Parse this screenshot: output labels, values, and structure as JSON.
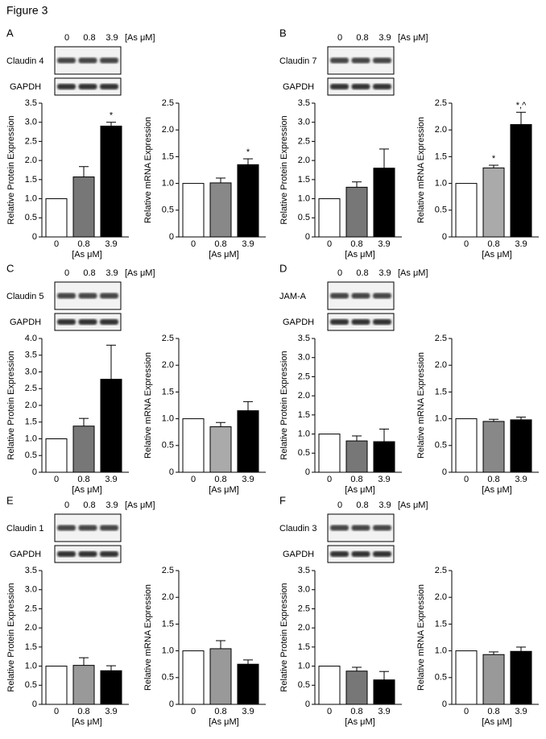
{
  "figure_title": "Figure 3",
  "panels": [
    {
      "label": "A",
      "doses": [
        "0",
        "0.8",
        "3.9"
      ],
      "unit": "[As μM]",
      "target": "Claudin 4",
      "control": "GAPDH"
    },
    {
      "label": "B",
      "doses": [
        "0",
        "0.8",
        "3.9"
      ],
      "unit": "[As μM]",
      "target": "Claudin 7",
      "control": "GAPDH"
    },
    {
      "label": "C",
      "doses": [
        "0",
        "0.8",
        "3.9"
      ],
      "unit": "[As μM]",
      "target": "Claudin 5",
      "control": "GAPDH"
    },
    {
      "label": "D",
      "doses": [
        "0",
        "0.8",
        "3.9"
      ],
      "unit": "[As μM]",
      "target": "JAM-A",
      "control": "GAPDH"
    },
    {
      "label": "E",
      "doses": [
        "0",
        "0.8",
        "3.9"
      ],
      "unit": "[As μM]",
      "target": "Claudin 1",
      "control": "GAPDH"
    },
    {
      "label": "F",
      "doses": [
        "0",
        "0.8",
        "3.9"
      ],
      "unit": "[As μM]",
      "target": "Claudin 3",
      "control": "GAPDH"
    }
  ],
  "chart_data": [
    {
      "type": "bar",
      "ylabel": "Relative Protein Expression",
      "xlabel": "[As μM]",
      "categories": [
        "0",
        "0.8",
        "3.9"
      ],
      "values": [
        1.0,
        1.57,
        2.9
      ],
      "errors": [
        0,
        0.27,
        0.1
      ],
      "annotations": [
        null,
        null,
        "*"
      ],
      "colors": [
        "#ffffff",
        "#777777",
        "#000000"
      ],
      "ylim": [
        0,
        3.5
      ],
      "yticks": [
        0,
        0.5,
        {
          "value": 1,
          "label": "1.0"
        },
        1.5,
        {
          "value": 2,
          "label": "2.0"
        },
        2.5,
        {
          "value": 3,
          "label": "3.0"
        },
        3.5
      ]
    },
    {
      "type": "bar",
      "ylabel": "Relative mRNA Expression",
      "xlabel": "[As μM]",
      "categories": [
        "0",
        "0.8",
        "3.9"
      ],
      "values": [
        1.0,
        1.01,
        1.35
      ],
      "errors": [
        0,
        0.09,
        0.11
      ],
      "annotations": [
        null,
        null,
        "*"
      ],
      "colors": [
        "#ffffff",
        "#888888",
        "#000000"
      ],
      "ylim": [
        0,
        2.5
      ],
      "yticks": [
        0,
        0.5,
        {
          "value": 1,
          "label": "1.0"
        },
        1.5,
        {
          "value": 2,
          "label": "2.0"
        },
        2.5
      ]
    },
    {
      "type": "bar",
      "ylabel": "Relative Protein Expression",
      "xlabel": "[As μM]",
      "categories": [
        "0",
        "0.8",
        "3.9"
      ],
      "values": [
        1.0,
        1.3,
        1.8
      ],
      "errors": [
        0,
        0.14,
        0.5
      ],
      "colors": [
        "#ffffff",
        "#777777",
        "#000000"
      ],
      "ylim": [
        0,
        3.5
      ],
      "yticks": [
        0,
        0.5,
        {
          "value": 1,
          "label": "1.0"
        },
        1.5,
        {
          "value": 2,
          "label": "2.0"
        },
        2.5,
        {
          "value": 3,
          "label": "3.0"
        },
        3.5
      ]
    },
    {
      "type": "bar",
      "ylabel": "Relative mRNA Expression",
      "xlabel": "[As μM]",
      "categories": [
        "0",
        "0.8",
        "3.9"
      ],
      "values": [
        1.0,
        1.29,
        2.1
      ],
      "errors": [
        0,
        0.05,
        0.23
      ],
      "annotations": [
        null,
        "*",
        "*,^"
      ],
      "colors": [
        "#ffffff",
        "#aaaaaa",
        "#000000"
      ],
      "ylim": [
        0,
        2.5
      ],
      "yticks": [
        0,
        0.5,
        {
          "value": 1,
          "label": "1.0"
        },
        1.5,
        {
          "value": 2,
          "label": "2.0"
        },
        2.5
      ]
    },
    {
      "type": "bar",
      "ylabel": "Relative Protein Expression",
      "xlabel": "[As μM]",
      "categories": [
        "0",
        "0.8",
        "3.9"
      ],
      "values": [
        1.0,
        1.38,
        2.78
      ],
      "errors": [
        0,
        0.23,
        1.02
      ],
      "colors": [
        "#ffffff",
        "#777777",
        "#000000"
      ],
      "ylim": [
        0,
        4
      ],
      "yticks": [
        0,
        0.5,
        {
          "value": 1,
          "label": "1.0"
        },
        1.5,
        {
          "value": 2,
          "label": "2.0"
        },
        2.5,
        {
          "value": 3,
          "label": "3.0"
        },
        3.5,
        {
          "value": 4,
          "label": "4.0"
        }
      ]
    },
    {
      "type": "bar",
      "ylabel": "Relative mRNA Expression",
      "xlabel": "[As μM]",
      "categories": [
        "0",
        "0.8",
        "3.9"
      ],
      "values": [
        1.0,
        0.85,
        1.15
      ],
      "errors": [
        0,
        0.08,
        0.17
      ],
      "colors": [
        "#ffffff",
        "#aaaaaa",
        "#000000"
      ],
      "ylim": [
        0,
        2.5
      ],
      "yticks": [
        0,
        0.5,
        {
          "value": 1,
          "label": "1.0"
        },
        1.5,
        {
          "value": 2,
          "label": "2.0"
        },
        2.5
      ]
    },
    {
      "type": "bar",
      "ylabel": "Relative Protein Expression",
      "xlabel": "[As μM]",
      "categories": [
        "0",
        "0.8",
        "3.9"
      ],
      "values": [
        1.0,
        0.82,
        0.8
      ],
      "errors": [
        0,
        0.13,
        0.33
      ],
      "colors": [
        "#ffffff",
        "#777777",
        "#000000"
      ],
      "ylim": [
        0,
        3.5
      ],
      "yticks": [
        0,
        0.5,
        {
          "value": 1,
          "label": "1.0"
        },
        1.5,
        {
          "value": 2,
          "label": "2.0"
        },
        2.5,
        {
          "value": 3,
          "label": "3.0"
        },
        3.5
      ]
    },
    {
      "type": "bar",
      "ylabel": "Relative mRNA Expression",
      "xlabel": "[As μM]",
      "categories": [
        "0",
        "0.8",
        "3.9"
      ],
      "values": [
        1.0,
        0.95,
        0.98
      ],
      "errors": [
        0,
        0.04,
        0.05
      ],
      "colors": [
        "#ffffff",
        "#888888",
        "#000000"
      ],
      "ylim": [
        0,
        2.5
      ],
      "yticks": [
        0,
        0.5,
        {
          "value": 1,
          "label": "1.0"
        },
        1.5,
        {
          "value": 2,
          "label": "2.0"
        },
        2.5
      ]
    },
    {
      "type": "bar",
      "ylabel": "Relative Protein Expression",
      "xlabel": "[As μM]",
      "categories": [
        "0",
        "0.8",
        "3.9"
      ],
      "values": [
        1.0,
        1.02,
        0.88
      ],
      "errors": [
        0,
        0.2,
        0.13
      ],
      "colors": [
        "#ffffff",
        "#999999",
        "#000000"
      ],
      "ylim": [
        0,
        3.5
      ],
      "yticks": [
        0,
        0.5,
        {
          "value": 1,
          "label": "1.0"
        },
        1.5,
        {
          "value": 2,
          "label": "2.0"
        },
        2.5,
        {
          "value": 3,
          "label": "3.0"
        },
        3.5
      ]
    },
    {
      "type": "bar",
      "ylabel": "Relative mRNA Expression",
      "xlabel": "[As μM]",
      "categories": [
        "0",
        "0.8",
        "3.9"
      ],
      "values": [
        1.0,
        1.04,
        0.75
      ],
      "errors": [
        0,
        0.15,
        0.08
      ],
      "colors": [
        "#ffffff",
        "#999999",
        "#000000"
      ],
      "ylim": [
        0,
        2.5
      ],
      "yticks": [
        0,
        0.5,
        {
          "value": 1,
          "label": "1.0"
        },
        1.5,
        {
          "value": 2,
          "label": "2.0"
        },
        2.5
      ]
    },
    {
      "type": "bar",
      "ylabel": "Relative Protein Expression",
      "xlabel": "[As μM]",
      "categories": [
        "0",
        "0.8",
        "3.9"
      ],
      "values": [
        1.0,
        0.87,
        0.64
      ],
      "errors": [
        0,
        0.1,
        0.22
      ],
      "colors": [
        "#ffffff",
        "#777777",
        "#000000"
      ],
      "ylim": [
        0,
        3.5
      ],
      "yticks": [
        0,
        0.5,
        {
          "value": 1,
          "label": "1.0"
        },
        1.5,
        {
          "value": 2,
          "label": "2.0"
        },
        2.5,
        {
          "value": 3,
          "label": "3.0"
        },
        3.5
      ]
    },
    {
      "type": "bar",
      "ylabel": "Relative mRNA Expression",
      "xlabel": "[As μM]",
      "categories": [
        "0",
        "0.8",
        "3.9"
      ],
      "values": [
        1.0,
        0.93,
        0.99
      ],
      "errors": [
        0,
        0.05,
        0.08
      ],
      "colors": [
        "#ffffff",
        "#999999",
        "#000000"
      ],
      "ylim": [
        0,
        2.5
      ],
      "yticks": [
        0,
        0.5,
        {
          "value": 1,
          "label": "1.0"
        },
        1.5,
        {
          "value": 2,
          "label": "2.0"
        },
        2.5
      ]
    }
  ]
}
